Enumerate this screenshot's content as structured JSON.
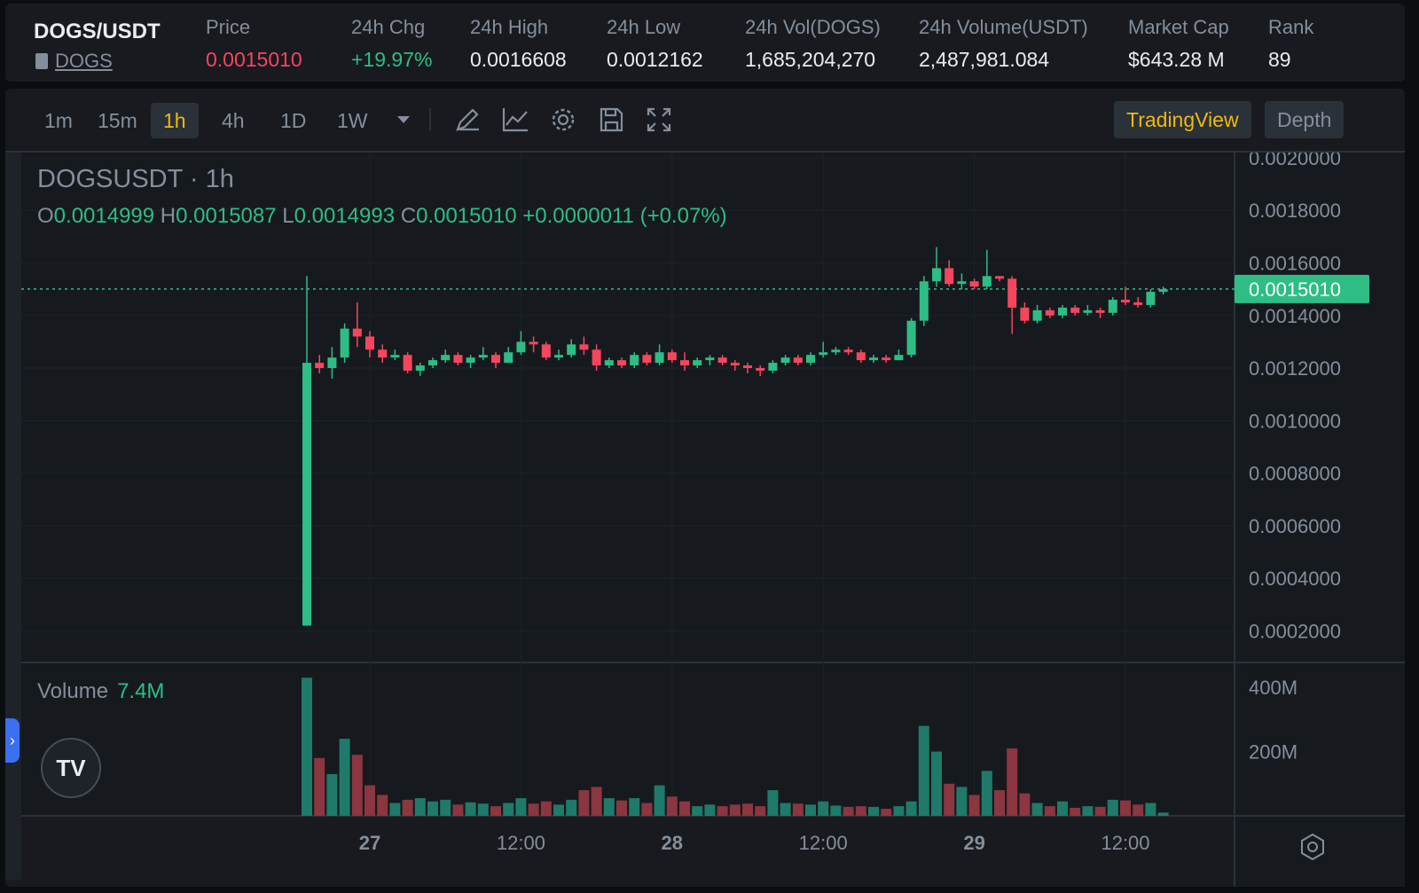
{
  "header": {
    "pair": "DOGS/USDT",
    "link": "DOGS",
    "stats": [
      {
        "label": "Price",
        "value": "0.0015010",
        "color": "#f6465d"
      },
      {
        "label": "24h Chg",
        "value": "+19.97%",
        "color": "#2ebd85"
      },
      {
        "label": "24h High",
        "value": "0.0016608",
        "color": "#eaecef"
      },
      {
        "label": "24h Low",
        "value": "0.0012162",
        "color": "#eaecef"
      },
      {
        "label": "24h Vol(DOGS)",
        "value": "1,685,204,270",
        "color": "#eaecef"
      },
      {
        "label": "24h Volume(USDT)",
        "value": "2,487,981.084",
        "color": "#eaecef"
      },
      {
        "label": "Market Cap",
        "value": "$643.28 M",
        "color": "#eaecef"
      },
      {
        "label": "Rank",
        "value": "89",
        "color": "#eaecef"
      }
    ]
  },
  "toolbar": {
    "timeframes": [
      "1m",
      "15m",
      "1h",
      "4h",
      "1D",
      "1W"
    ],
    "active_timeframe": "1h",
    "tools": [
      "timeframe-dropdown-icon",
      "draw-pen-icon",
      "indicator-line-icon",
      "settings-gear-icon",
      "save-icon",
      "fullscreen-icon"
    ],
    "tabs": [
      "TradingView",
      "Depth"
    ],
    "active_tab": "TradingView"
  },
  "legend": {
    "symbol": "DOGSUSDT · 1h",
    "o_label": "O",
    "o": "0.0014999",
    "h_label": "H",
    "h": "0.0015087",
    "l_label": "L",
    "l": "0.0014993",
    "c_label": "C",
    "c": "0.0015010",
    "change": "+0.0000011 (+0.07%)",
    "volume_label": "Volume",
    "volume_value": "7.4M",
    "logo": "TV"
  },
  "colors": {
    "up": "#2ebd85",
    "down": "#f6465d",
    "up_vol": "#1f7a6a",
    "down_vol": "#8b3640",
    "accent": "#f0b90b"
  },
  "chart_data": {
    "type": "candlestick",
    "price_axis": {
      "ticks": [
        "0.0020000",
        "0.0018000",
        "0.0016000",
        "0.0014000",
        "0.0012000",
        "0.0010000",
        "0.0008000",
        "0.0006000",
        "0.0004000",
        "0.0002000"
      ],
      "range": [
        8e-05,
        0.00202
      ],
      "last_price": 0.001501,
      "last_price_label": "0.0015010"
    },
    "volume_axis": {
      "ticks": [
        "400M",
        "200M"
      ],
      "range": [
        0,
        450
      ]
    },
    "time_axis": {
      "ticks": [
        "27",
        "12:00",
        "28",
        "12:00",
        "29",
        "12:00"
      ],
      "tick_index": [
        5,
        17,
        29,
        41,
        53,
        65
      ]
    },
    "candles": [
      [
        0.00022,
        0.00122,
        0.00155,
        0.00022,
        430
      ],
      [
        0.00122,
        0.0012,
        0.00125,
        0.00118,
        180
      ],
      [
        0.0012,
        0.00124,
        0.00128,
        0.00116,
        130
      ],
      [
        0.00124,
        0.00135,
        0.00137,
        0.00122,
        240
      ],
      [
        0.00135,
        0.00132,
        0.00145,
        0.00128,
        190
      ],
      [
        0.00132,
        0.00127,
        0.00134,
        0.00124,
        95
      ],
      [
        0.00127,
        0.00124,
        0.00129,
        0.00122,
        65
      ],
      [
        0.00124,
        0.00125,
        0.00127,
        0.00123,
        40
      ],
      [
        0.00125,
        0.00119,
        0.00126,
        0.00118,
        50
      ],
      [
        0.00119,
        0.00121,
        0.00122,
        0.00117,
        55
      ],
      [
        0.00121,
        0.00123,
        0.00124,
        0.0012,
        45
      ],
      [
        0.00123,
        0.00125,
        0.00127,
        0.00122,
        50
      ],
      [
        0.00125,
        0.00122,
        0.00126,
        0.00121,
        35
      ],
      [
        0.00122,
        0.00124,
        0.00125,
        0.0012,
        42
      ],
      [
        0.00124,
        0.00125,
        0.00128,
        0.00123,
        38
      ],
      [
        0.00125,
        0.00122,
        0.00126,
        0.0012,
        30
      ],
      [
        0.00122,
        0.00126,
        0.00128,
        0.00122,
        40
      ],
      [
        0.00126,
        0.0013,
        0.00134,
        0.00125,
        55
      ],
      [
        0.0013,
        0.00129,
        0.00132,
        0.00126,
        38
      ],
      [
        0.00129,
        0.00124,
        0.0013,
        0.00123,
        45
      ],
      [
        0.00124,
        0.00125,
        0.00127,
        0.00123,
        35
      ],
      [
        0.00125,
        0.00129,
        0.00131,
        0.00124,
        50
      ],
      [
        0.00129,
        0.00127,
        0.00132,
        0.00125,
        80
      ],
      [
        0.00127,
        0.00121,
        0.00129,
        0.00119,
        90
      ],
      [
        0.00121,
        0.00123,
        0.00124,
        0.0012,
        55
      ],
      [
        0.00123,
        0.00121,
        0.00124,
        0.0012,
        48
      ],
      [
        0.00121,
        0.00125,
        0.00126,
        0.0012,
        55
      ],
      [
        0.00125,
        0.00122,
        0.00126,
        0.00121,
        40
      ],
      [
        0.00122,
        0.00126,
        0.00129,
        0.00121,
        95
      ],
      [
        0.00126,
        0.00123,
        0.00127,
        0.00122,
        60
      ],
      [
        0.00123,
        0.00121,
        0.00126,
        0.00119,
        45
      ],
      [
        0.00121,
        0.00123,
        0.00124,
        0.0012,
        30
      ],
      [
        0.00123,
        0.00124,
        0.00125,
        0.00121,
        35
      ],
      [
        0.00124,
        0.00122,
        0.00125,
        0.00121,
        30
      ],
      [
        0.00122,
        0.00121,
        0.00123,
        0.00119,
        35
      ],
      [
        0.00121,
        0.0012,
        0.00122,
        0.00118,
        38
      ],
      [
        0.0012,
        0.00119,
        0.00121,
        0.00117,
        30
      ],
      [
        0.00119,
        0.00122,
        0.00123,
        0.00118,
        80
      ],
      [
        0.00122,
        0.00124,
        0.00125,
        0.00121,
        40
      ],
      [
        0.00124,
        0.00122,
        0.00125,
        0.00121,
        38
      ],
      [
        0.00122,
        0.00125,
        0.00126,
        0.00121,
        35
      ],
      [
        0.00125,
        0.00126,
        0.0013,
        0.00124,
        45
      ],
      [
        0.00126,
        0.00127,
        0.00128,
        0.00125,
        32
      ],
      [
        0.00127,
        0.00126,
        0.00128,
        0.00125,
        28
      ],
      [
        0.00126,
        0.00123,
        0.00127,
        0.00122,
        30
      ],
      [
        0.00123,
        0.00124,
        0.00125,
        0.00122,
        28
      ],
      [
        0.00124,
        0.00123,
        0.00125,
        0.00122,
        22
      ],
      [
        0.00123,
        0.00125,
        0.00127,
        0.00123,
        30
      ],
      [
        0.00125,
        0.00138,
        0.00139,
        0.00124,
        45
      ],
      [
        0.00138,
        0.00153,
        0.00155,
        0.00136,
        280
      ],
      [
        0.00153,
        0.00158,
        0.00166,
        0.00151,
        200
      ],
      [
        0.00158,
        0.00152,
        0.00161,
        0.00151,
        100
      ],
      [
        0.00152,
        0.00153,
        0.00156,
        0.0015,
        90
      ],
      [
        0.00153,
        0.00151,
        0.00154,
        0.0015,
        65
      ],
      [
        0.00151,
        0.00155,
        0.00165,
        0.0015,
        140
      ],
      [
        0.00155,
        0.00154,
        0.00155,
        0.00153,
        80
      ],
      [
        0.00154,
        0.00143,
        0.00155,
        0.00133,
        210
      ],
      [
        0.00143,
        0.00138,
        0.00145,
        0.00137,
        70
      ],
      [
        0.00138,
        0.00142,
        0.00144,
        0.00137,
        40
      ],
      [
        0.00142,
        0.0014,
        0.00143,
        0.00139,
        30
      ],
      [
        0.0014,
        0.00143,
        0.00144,
        0.00139,
        45
      ],
      [
        0.00143,
        0.00141,
        0.00144,
        0.0014,
        25
      ],
      [
        0.00141,
        0.00142,
        0.00144,
        0.0014,
        30
      ],
      [
        0.00142,
        0.00141,
        0.00143,
        0.00139,
        28
      ],
      [
        0.00141,
        0.00146,
        0.00147,
        0.0014,
        50
      ],
      [
        0.00146,
        0.00145,
        0.00151,
        0.00144,
        48
      ],
      [
        0.00145,
        0.00144,
        0.00147,
        0.00143,
        35
      ],
      [
        0.00144,
        0.00149,
        0.0015,
        0.00143,
        40
      ],
      [
        0.00149,
        0.0015,
        0.00151,
        0.00148,
        10
      ]
    ]
  }
}
